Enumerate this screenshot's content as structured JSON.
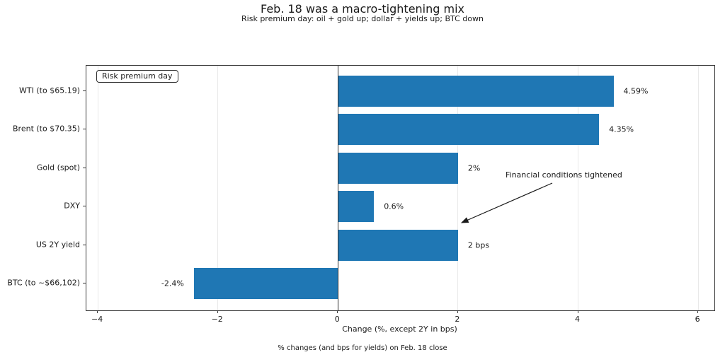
{
  "chart_data": {
    "type": "bar",
    "orientation": "horizontal",
    "title": "Feb. 18 was a macro-tightening mix",
    "subtitle": "Risk premium day: oil + gold up; dollar + yields up; BTC down",
    "xlabel": "Change (%, except 2Y in bps)",
    "footnote": "% changes (and bps for yields) on Feb. 18 close",
    "legend_label": "Risk premium day",
    "categories": [
      "WTI (to $65.19)",
      "Brent (to $70.35)",
      "Gold (spot)",
      "DXY",
      "US 2Y yield",
      "BTC (to ~$66,102)"
    ],
    "values": [
      4.59,
      4.35,
      2,
      0.6,
      2,
      -2.4
    ],
    "value_labels": [
      "4.59%",
      "4.35%",
      "2%",
      "0.6%",
      "2 bps",
      "-2.4%"
    ],
    "xticks": [
      -4,
      -2,
      0,
      2,
      4,
      6
    ],
    "xlim": [
      -4.19,
      6.27
    ],
    "grid": true,
    "zero_line": true,
    "legend_position": "upper left",
    "bar_color": "#1f77b4",
    "gridline_color": "#e9e9e9",
    "annotation": {
      "text": "Financial conditions tightened",
      "points_to": "US 2Y yield"
    }
  }
}
